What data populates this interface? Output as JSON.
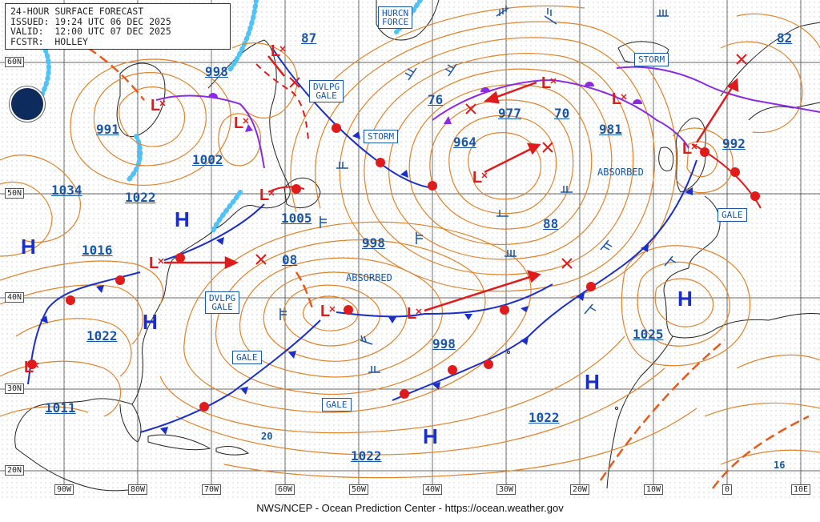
{
  "header": {
    "title": "24-HOUR SURFACE FORECAST",
    "issued": "ISSUED: 19:24 UTC 06 DEC 2025",
    "valid": "VALID:  12:00 UTC 07 DEC 2025",
    "forecaster": "FCSTR:  HOLLEY"
  },
  "footer": "NWS/NCEP - Ocean Prediction Center - https://ocean.weather.gov",
  "latitude_labels": [
    "60N",
    "50N",
    "40N",
    "30N",
    "20N"
  ],
  "longitude_labels": [
    "90W",
    "80W",
    "70W",
    "60W",
    "50W",
    "40W",
    "30W",
    "20W",
    "10W",
    "0",
    "10E"
  ],
  "pressure_labels": [
    "87",
    "998",
    "991",
    "1002",
    "1034",
    "1022",
    "1016",
    "1022",
    "1011",
    "1005",
    "08",
    "998",
    "76",
    "977",
    "70",
    "964",
    "981",
    "992",
    "82",
    "88",
    "998",
    "1025",
    "1022",
    "1022"
  ],
  "small_labels": [
    "20",
    "16"
  ],
  "warnings": {
    "hurcn_force": [
      "HURCN",
      "FORCE"
    ],
    "dvlpg_gale_1": [
      "DVLPG",
      "GALE"
    ],
    "storm_1": "STORM",
    "storm_2": "STORM",
    "dvlpg_gale_2": [
      "DVLPG",
      "GALE"
    ],
    "gale_1": "GALE",
    "gale_2": "GALE",
    "gale_3": "GALE"
  },
  "notes": [
    "ABSORBED",
    "ABSORBED"
  ],
  "high_symbol": "H",
  "low_symbol": "L",
  "colors": {
    "isobar": "#e0832a",
    "cold_front": "#1a2ec8",
    "warm_front": "#e01b1b",
    "occluded_front": "#8a2be2",
    "text_blue": "#1856a6",
    "ice": "#4fc3f7",
    "track_arrow": "#e01b1b"
  },
  "icons": [
    "noaa-logo-icon",
    "high-pressure-icon",
    "low-pressure-icon",
    "storm-track-arrow-icon",
    "wind-barb-icon"
  ]
}
